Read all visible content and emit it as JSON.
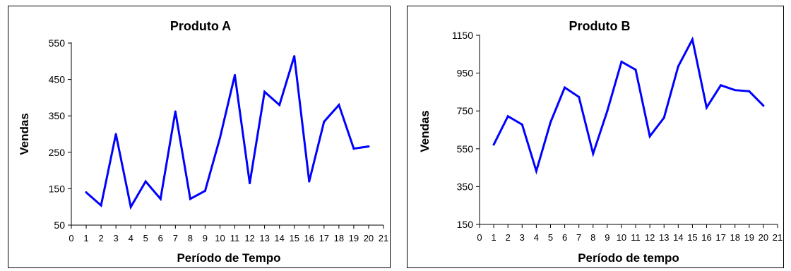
{
  "chart_data": [
    {
      "type": "line",
      "title": "Produto A",
      "xlabel": "Período de Tempo",
      "ylabel": "Vendas",
      "xlim": [
        0,
        21
      ],
      "ylim": [
        50,
        550
      ],
      "yticks": [
        50,
        150,
        250,
        350,
        450,
        550
      ],
      "xticks": [
        0,
        1,
        2,
        3,
        4,
        5,
        6,
        7,
        8,
        9,
        10,
        11,
        12,
        13,
        14,
        15,
        16,
        17,
        18,
        19,
        20,
        21
      ],
      "grid": false,
      "color": "#0000ff",
      "series": [
        {
          "x": [
            1,
            2,
            3,
            4,
            5,
            6,
            7,
            8,
            9,
            10,
            11,
            12,
            13,
            14,
            15,
            16,
            17,
            18,
            19,
            20
          ],
          "values": [
            140,
            104,
            300,
            100,
            170,
            122,
            362,
            122,
            144,
            290,
            462,
            165,
            416,
            380,
            514,
            170,
            334,
            380,
            260,
            266
          ]
        }
      ]
    },
    {
      "type": "line",
      "title": "Produto B",
      "xlabel": "Período de tempo",
      "ylabel": "Vendas",
      "xlim": [
        0,
        21
      ],
      "ylim": [
        150,
        1150
      ],
      "yticks": [
        150,
        350,
        550,
        750,
        950,
        1150
      ],
      "xticks": [
        0,
        1,
        2,
        3,
        4,
        5,
        6,
        7,
        8,
        9,
        10,
        11,
        12,
        13,
        14,
        15,
        16,
        17,
        18,
        19,
        20,
        21
      ],
      "grid": false,
      "color": "#0000ff",
      "series": [
        {
          "x": [
            1,
            2,
            3,
            4,
            5,
            6,
            7,
            8,
            9,
            10,
            11,
            12,
            13,
            14,
            15,
            16,
            17,
            18,
            19,
            20
          ],
          "values": [
            572,
            722,
            678,
            432,
            690,
            874,
            824,
            524,
            750,
            1010,
            968,
            616,
            714,
            986,
            1128,
            768,
            886,
            860,
            854,
            778
          ]
        }
      ]
    }
  ]
}
